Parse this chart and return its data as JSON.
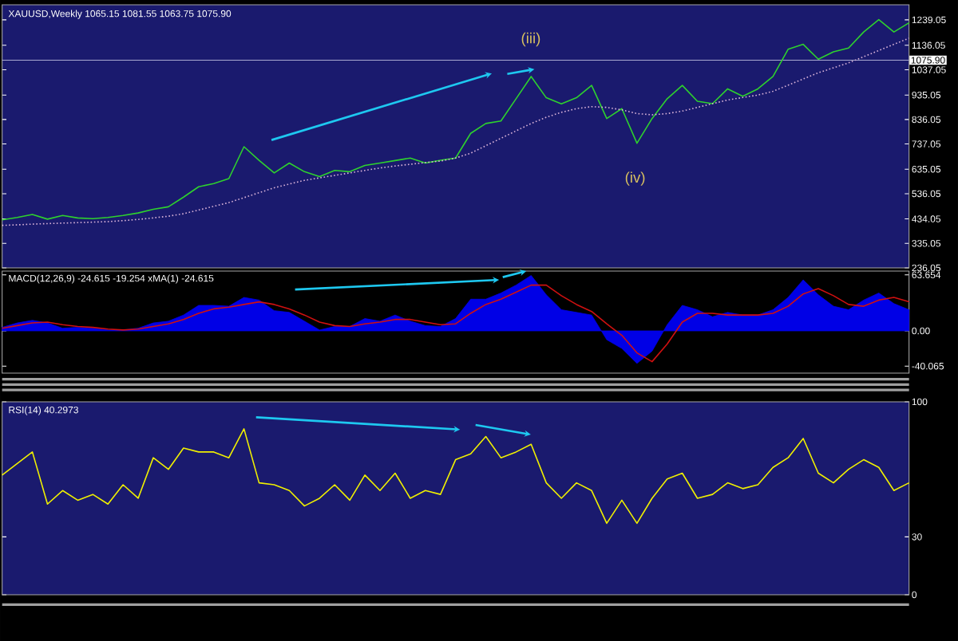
{
  "chart_data": [
    {
      "type": "line",
      "title": "XAUUSD,Weekly 1065.15 1081.55 1063.75 1075.90",
      "categories": [
        null,
        null,
        null,
        null,
        null,
        null,
        null,
        null,
        null,
        null,
        null,
        null,
        null,
        null,
        null,
        null,
        null,
        null,
        null,
        null,
        null,
        null,
        null,
        null,
        null,
        null,
        null,
        null,
        null,
        null,
        null,
        null,
        null,
        null,
        null,
        null,
        null,
        null,
        null,
        null,
        null,
        null,
        null,
        null,
        null,
        null,
        null,
        null,
        null,
        null,
        null,
        null,
        null,
        null,
        null,
        null,
        null,
        null,
        null,
        null,
        null
      ],
      "ylim": [
        236.05,
        1300
      ],
      "yticks": [
        236.05,
        335.05,
        434.05,
        536.05,
        635.05,
        737.05,
        836.05,
        935.05,
        1037.05,
        1136.05,
        1239.05
      ],
      "tick_labels": "y",
      "series": [
        {
          "color": "#2ed12e",
          "values": [
            430,
            440,
            452,
            433,
            448,
            438,
            435,
            440,
            448,
            458,
            473,
            483,
            522,
            564,
            577,
            597,
            726,
            671,
            620,
            660,
            625,
            605,
            630,
            625,
            650,
            660,
            670,
            680,
            660,
            671,
            680,
            780,
            820,
            830,
            920,
            1010,
            924,
            899,
            924,
            974,
            840,
            880,
            740,
            840,
            920,
            974,
            910,
            900,
            960,
            930,
            960,
            1010,
            1120,
            1140,
            1080,
            1110,
            1125,
            1190,
            1240,
            1190,
            1227
          ]
        },
        {
          "color": "#d9b3d9",
          "line_style": "dotted",
          "values": [
            408,
            410,
            413,
            415,
            417,
            419,
            421,
            423,
            427,
            432,
            438,
            445,
            455,
            470,
            485,
            500,
            520,
            540,
            560,
            575,
            590,
            600,
            610,
            620,
            630,
            640,
            648,
            655,
            662,
            668,
            680,
            700,
            730,
            760,
            790,
            820,
            845,
            865,
            880,
            888,
            885,
            875,
            860,
            855,
            860,
            870,
            885,
            900,
            915,
            925,
            935,
            950,
            975,
            1000,
            1025,
            1045,
            1065,
            1090,
            1115,
            1140,
            1165
          ]
        }
      ],
      "ref_lines": [
        {
          "axis": "y",
          "value": 1075.9,
          "label": "1075.90",
          "color": "#a8a8d0"
        }
      ],
      "annotations": [
        "(iii)",
        "(iv)"
      ]
    },
    {
      "type": "line",
      "title": "MACD(12,26,9) -24.615 -19.254 xMA(1) -24.615",
      "categories": [
        null,
        null,
        null,
        null,
        null,
        null,
        null,
        null,
        null,
        null,
        null,
        null,
        null,
        null,
        null,
        null,
        null,
        null,
        null,
        null,
        null,
        null,
        null,
        null,
        null,
        null,
        null,
        null,
        null,
        null,
        null,
        null,
        null,
        null,
        null,
        null,
        null,
        null,
        null,
        null,
        null,
        null,
        null,
        null,
        null,
        null,
        null,
        null,
        null,
        null,
        null,
        null,
        null,
        null,
        null,
        null,
        null,
        null,
        null,
        null,
        null
      ],
      "ylim": [
        -48,
        68
      ],
      "yticks": [
        -40.065,
        {
          "value": 0,
          "label": "0.00"
        },
        63.654
      ],
      "tick_labels": "y",
      "series": [
        {
          "type": "area",
          "color": "#0000e6",
          "values": [
            4,
            9,
            12,
            9,
            3,
            4,
            3,
            1,
            1,
            3,
            9,
            11,
            18,
            29,
            29,
            28,
            38,
            35,
            23,
            21,
            11,
            1,
            5,
            5,
            14,
            11,
            18,
            11,
            6,
            5,
            14,
            36,
            36,
            43,
            52,
            63,
            41,
            24,
            21,
            18,
            -10,
            -20,
            -37,
            -23,
            7,
            29,
            24,
            16,
            21,
            18,
            18,
            24,
            38,
            58,
            41,
            28,
            24,
            35,
            43,
            31,
            24
          ]
        },
        {
          "color": "#d01010",
          "values": [
            3,
            6,
            9,
            10,
            7,
            5,
            4,
            2,
            1,
            2,
            5,
            8,
            13,
            20,
            25,
            27,
            30,
            33,
            30,
            25,
            18,
            10,
            6,
            5,
            8,
            10,
            13,
            13,
            10,
            7,
            8,
            20,
            30,
            36,
            44,
            52,
            52,
            40,
            30,
            22,
            8,
            -5,
            -25,
            -35,
            -15,
            10,
            20,
            20,
            18,
            18,
            18,
            20,
            28,
            42,
            48,
            40,
            30,
            28,
            35,
            38,
            33
          ]
        }
      ]
    },
    {
      "type": "line",
      "title": "RSI(14) 40.2973",
      "categories": [
        null,
        null,
        null,
        null,
        null,
        null,
        null,
        null,
        null,
        null,
        null,
        null,
        null,
        null,
        null,
        null,
        null,
        null,
        null,
        null,
        null,
        null,
        null,
        null,
        null,
        null,
        null,
        null,
        null,
        null,
        null,
        null,
        null,
        null,
        null,
        null,
        null,
        null,
        null,
        null,
        null,
        null,
        null,
        null,
        null,
        null,
        null,
        null,
        null,
        null,
        null,
        null,
        null,
        null,
        null,
        null,
        null,
        null,
        null,
        null,
        null
      ],
      "ylim": [
        0,
        100
      ],
      "yticks": [
        0,
        30,
        100
      ],
      "tick_labels": "y",
      "series": [
        {
          "color": "#f0f000",
          "values": [
            62,
            68,
            74,
            47,
            54,
            49,
            52,
            47,
            57,
            50,
            71,
            65,
            76,
            74,
            74,
            71,
            86,
            58,
            57,
            54,
            46,
            50,
            57,
            49,
            62,
            54,
            63,
            50,
            54,
            52,
            70,
            73,
            82,
            71,
            74,
            78,
            58,
            50,
            58,
            54,
            37,
            49,
            37,
            50,
            60,
            63,
            50,
            52,
            58,
            55,
            57,
            66,
            71,
            81,
            63,
            58,
            65,
            70,
            66,
            54,
            58
          ]
        }
      ]
    }
  ]
}
